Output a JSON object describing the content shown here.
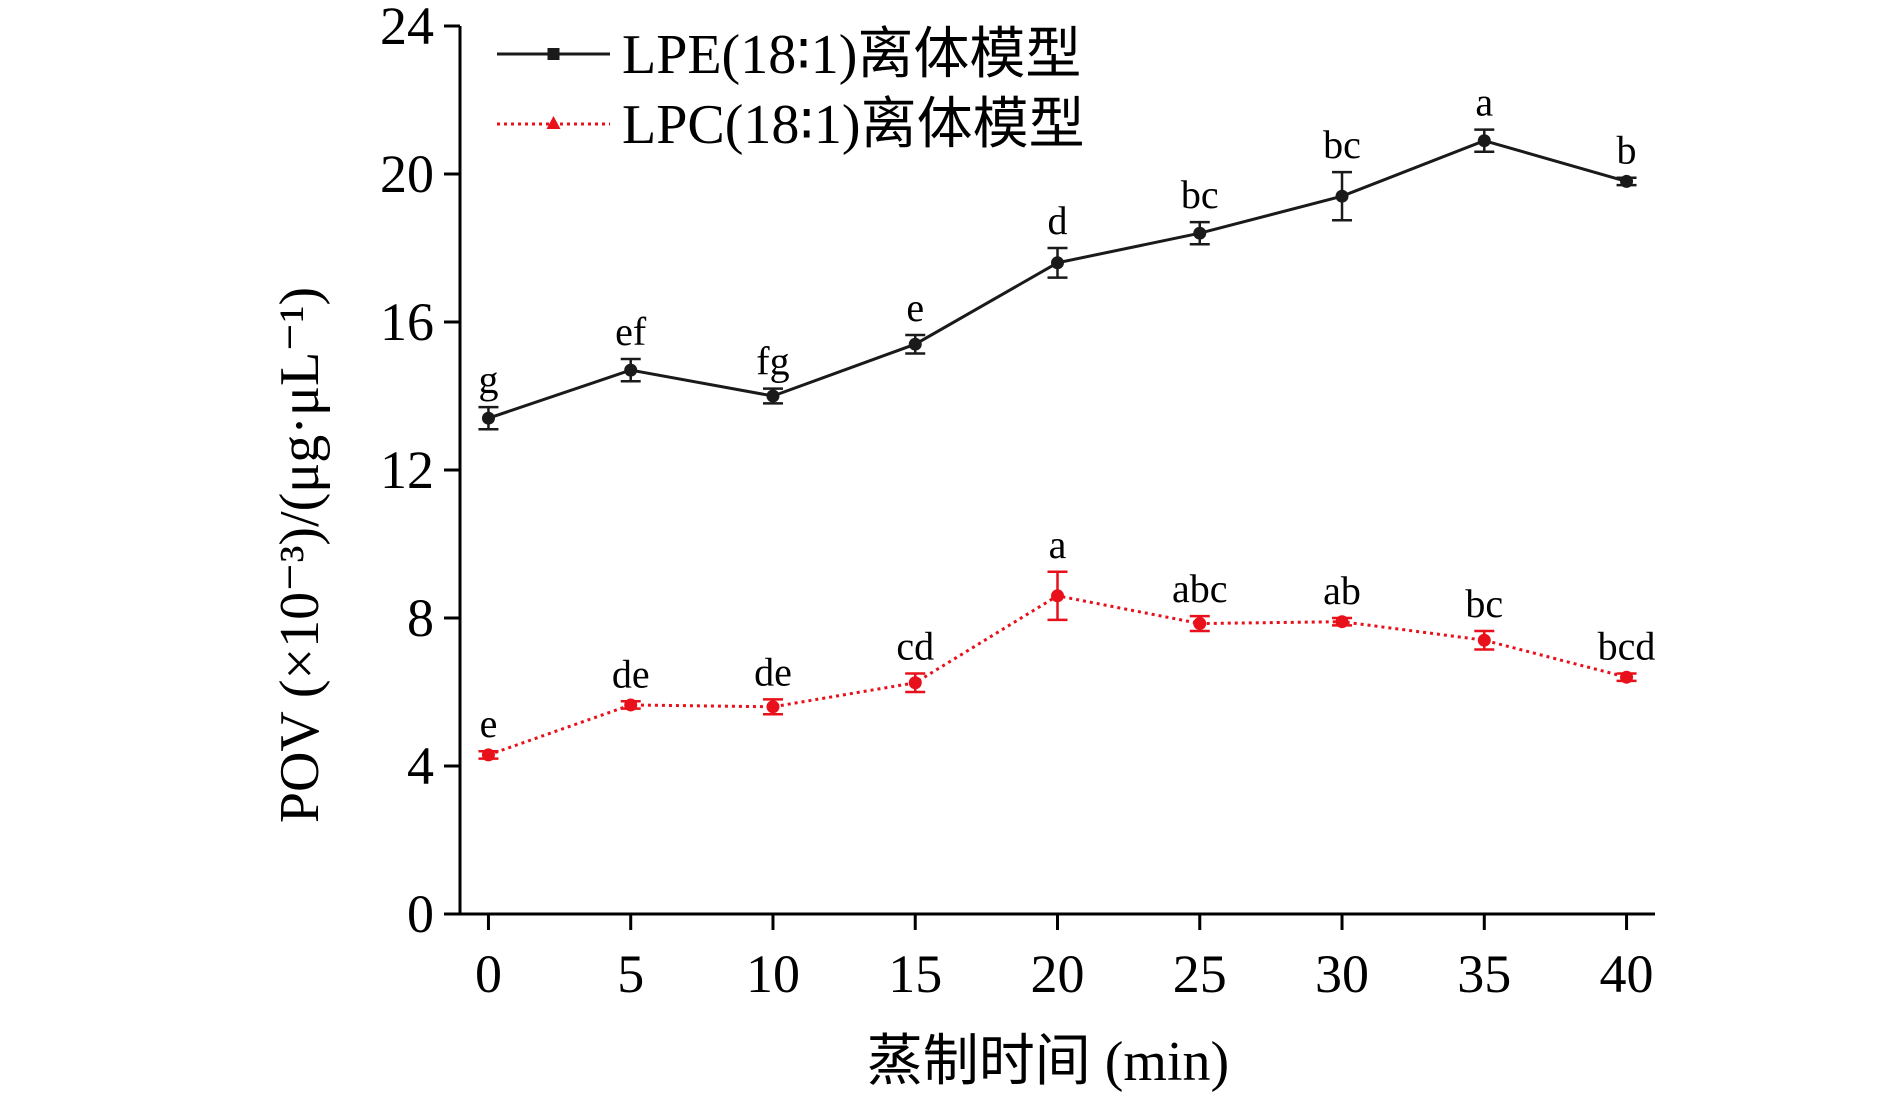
{
  "chart_data": {
    "type": "line",
    "title": "",
    "xlabel": "蒸制时间 (min)",
    "ylabel": "POV (×10⁻³)/(μg·μL⁻¹)",
    "xlim": [
      -1,
      41
    ],
    "ylim": [
      0,
      24
    ],
    "x": [
      0,
      5,
      10,
      15,
      20,
      25,
      30,
      35,
      40
    ],
    "xticks": [
      "0",
      "5",
      "10",
      "15",
      "20",
      "25",
      "30",
      "35",
      "40"
    ],
    "yticks": [
      "0",
      "4",
      "8",
      "12",
      "16",
      "20",
      "24"
    ],
    "grid": false,
    "legend_position": "top-left",
    "series": [
      {
        "name": "LPE(18∶1)离体模型",
        "color": "#1a1a1a",
        "line_style": "solid",
        "marker": "square",
        "values": [
          13.4,
          14.7,
          14.0,
          15.4,
          17.6,
          18.4,
          19.4,
          20.9,
          19.8
        ],
        "errors": [
          0.3,
          0.3,
          0.2,
          0.25,
          0.4,
          0.3,
          0.65,
          0.3,
          0.1
        ],
        "labels": [
          "g",
          "ef",
          "fg",
          "e",
          "d",
          "bc",
          "bc",
          "a",
          "b"
        ]
      },
      {
        "name": "LPC(18∶1)离体模型",
        "color": "#e8101a",
        "line_style": "dotted",
        "marker": "triangle",
        "values": [
          4.3,
          5.65,
          5.6,
          6.25,
          8.6,
          7.85,
          7.9,
          7.4,
          6.4
        ],
        "errors": [
          0.1,
          0.1,
          0.2,
          0.25,
          0.65,
          0.2,
          0.1,
          0.25,
          0.1
        ],
        "labels": [
          "e",
          "de",
          "de",
          "cd",
          "a",
          "abc",
          "ab",
          "bc",
          "bcd"
        ]
      }
    ]
  }
}
